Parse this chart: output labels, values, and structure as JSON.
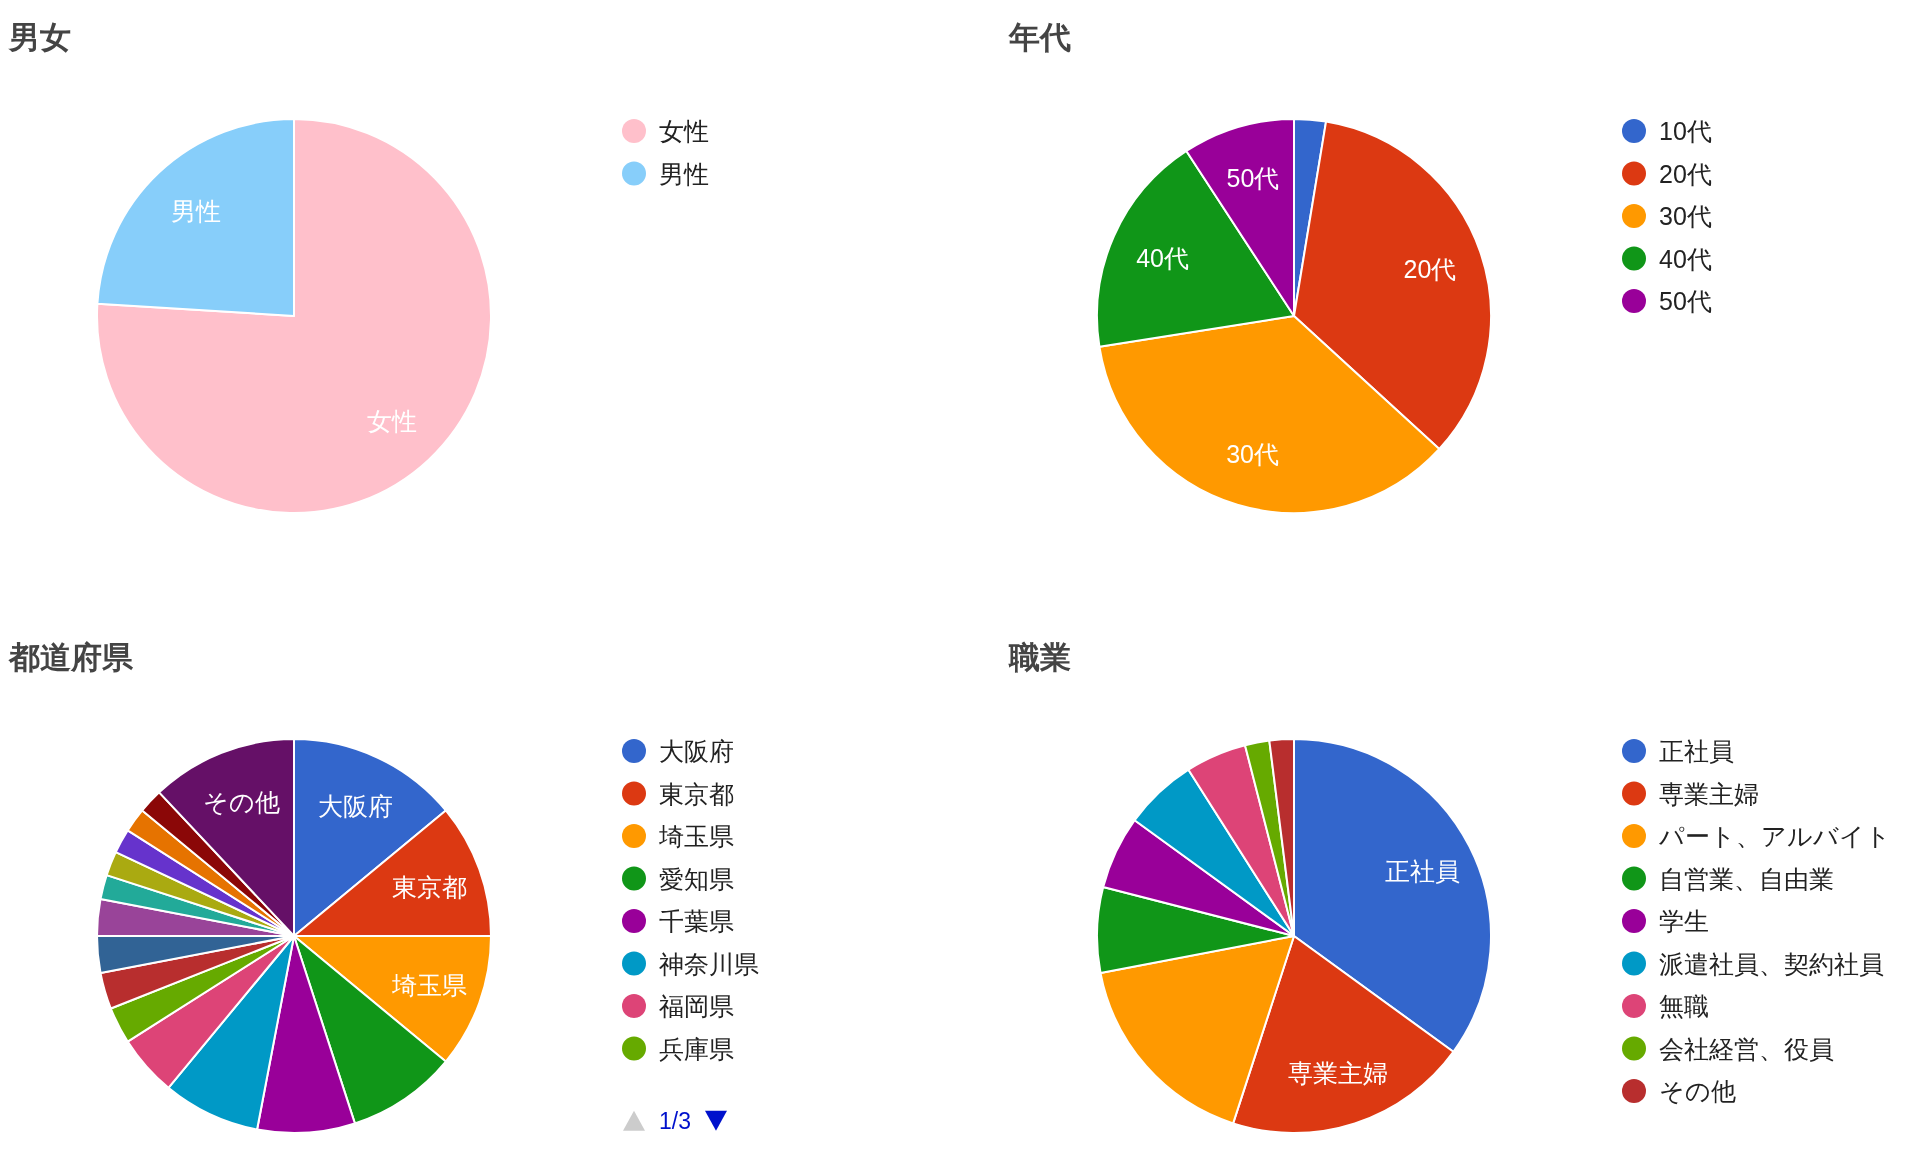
{
  "chart_data": [
    {
      "type": "pie",
      "title": "男女",
      "categories": [
        "女性",
        "男性"
      ],
      "values": [
        76,
        24
      ],
      "colors": [
        "#ffc0cb",
        "#87cefa"
      ],
      "legend": "right"
    },
    {
      "type": "pie",
      "title": "年代",
      "categories": [
        "10代",
        "20代",
        "30代",
        "40代",
        "50代"
      ],
      "values": [
        2.6,
        34.2,
        35.7,
        18.3,
        9.2
      ],
      "colors": [
        "#3366cc",
        "#dc3912",
        "#ff9900",
        "#109618",
        "#990099"
      ],
      "legend": "right"
    },
    {
      "type": "pie",
      "title": "都道府県",
      "categories": [
        "大阪府",
        "東京都",
        "埼玉県",
        "愛知県",
        "千葉県",
        "神奈川県",
        "福岡県",
        "兵庫県",
        null,
        null,
        null,
        null,
        null,
        null,
        null,
        null,
        "その他"
      ],
      "values": [
        14,
        11,
        11,
        9,
        8,
        8,
        5,
        3,
        3,
        3,
        3,
        2,
        2,
        2,
        2,
        2,
        12
      ],
      "colors": [
        "#3366cc",
        "#dc3912",
        "#ff9900",
        "#109618",
        "#990099",
        "#0099c6",
        "#dd4477",
        "#66aa00",
        "#b82e2e",
        "#316395",
        "#994499",
        "#22aa99",
        "#aaaa11",
        "#6633cc",
        "#e67300",
        "#8b0707",
        "#651067"
      ],
      "legend": "right",
      "annotations": [
        "1/3"
      ]
    },
    {
      "type": "pie",
      "title": "職業",
      "categories": [
        "正社員",
        "専業主婦",
        "パート、アルバイト",
        "自営業、自由業",
        "学生",
        "派遣社員、契約社員",
        "無職",
        "会社経営、役員",
        "その他"
      ],
      "values": [
        35,
        20,
        17,
        7,
        6,
        6,
        5,
        2,
        2
      ],
      "colors": [
        "#3366cc",
        "#dc3912",
        "#ff9900",
        "#109618",
        "#990099",
        "#0099c6",
        "#dd4477",
        "#66aa00",
        "#b82e2e"
      ],
      "legend": "right"
    }
  ]
}
